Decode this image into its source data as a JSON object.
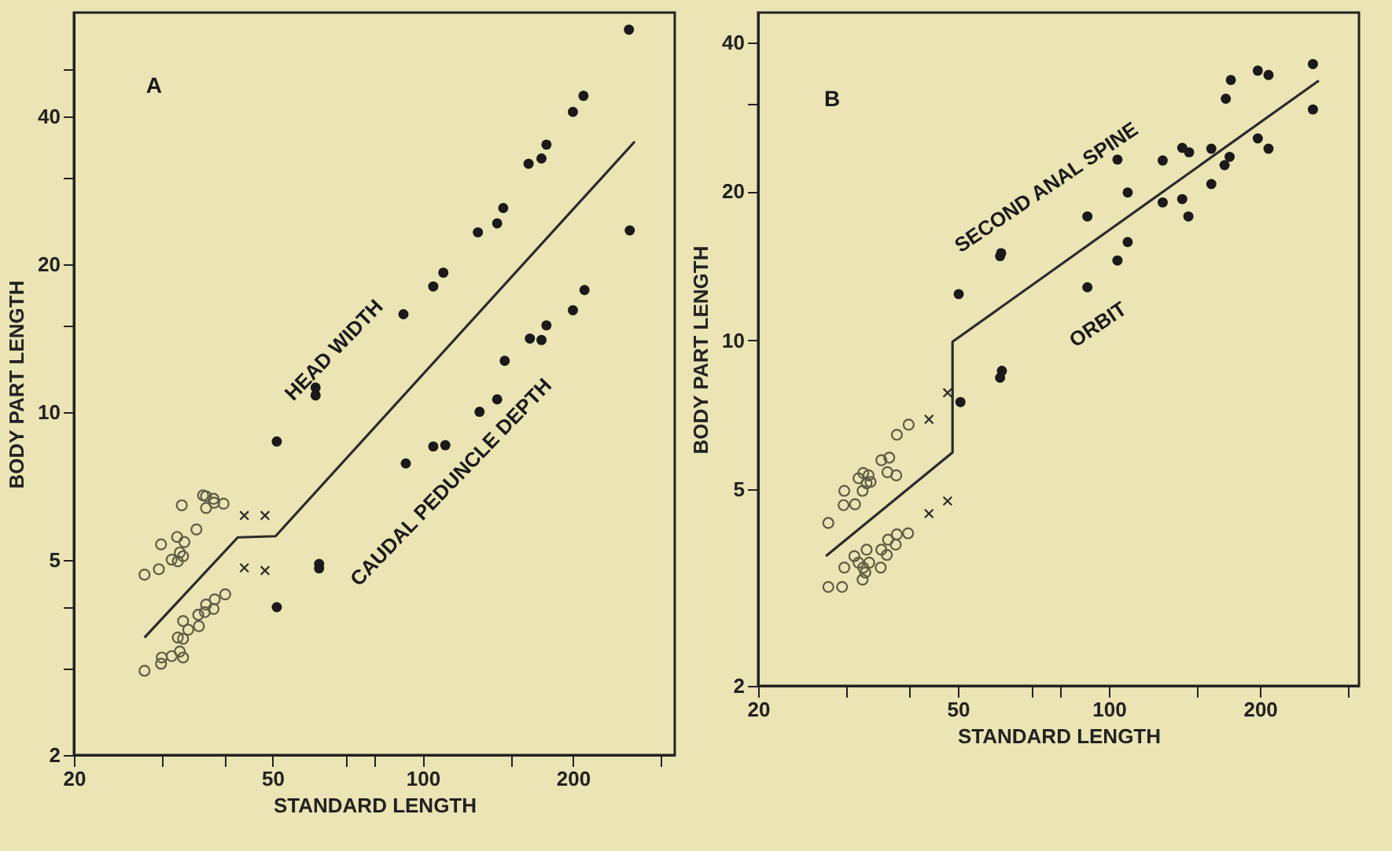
{
  "chart_data": [
    {
      "type": "scatter",
      "xlabel": "STANDARD LENGTH",
      "ylabel": "BODY PART LENGTH",
      "log": "xy",
      "xlim": [
        20,
        320
      ],
      "ylim": [
        2,
        65
      ],
      "xticks": [
        20,
        {
          "value": 30,
          "label": null
        },
        {
          "value": 40,
          "label": null
        },
        50,
        {
          "value": 70,
          "label": null
        },
        {
          "value": 80,
          "label": null
        },
        100,
        {
          "value": 150,
          "label": null
        },
        200,
        {
          "value": 300,
          "label": null
        }
      ],
      "yticks": [
        2,
        {
          "value": 3,
          "label": null
        },
        {
          "value": 4,
          "label": null
        },
        5,
        10,
        {
          "value": 15,
          "label": null
        },
        20,
        {
          "value": 30,
          "label": null
        },
        40,
        {
          "value": 50,
          "label": null
        }
      ],
      "annotations": [
        "A",
        "HEAD WIDTH",
        "CAUDAL PEDUNCLE DEPTH"
      ],
      "series": [
        {
          "type": "scatter",
          "marker": "circle",
          "color": "#5e5c45",
          "x": [
            36.3,
            36.8,
            38.1,
            36.8,
            39.9,
            38.2,
            32.9,
            35.2,
            32.2,
            33.3,
            29.9,
            32.6,
            33.1,
            31.4,
            32.3,
            29.6,
            27.7,
            40.2,
            38.3,
            36.8,
            38.1,
            36.6,
            35.5,
            35.6,
            33.1,
            33.9,
            32.3,
            33.1,
            32.6,
            31.4,
            30.0,
            33.1,
            29.9,
            27.7
          ],
          "values": [
            6.76,
            6.73,
            6.65,
            6.37,
            6.5,
            6.53,
            6.45,
            5.76,
            5.56,
            5.43,
            5.37,
            5.17,
            5.08,
            5.0,
            4.96,
            4.78,
            4.66,
            4.25,
            4.15,
            4.05,
            3.97,
            3.91,
            3.86,
            3.66,
            3.75,
            3.6,
            3.47,
            3.45,
            3.25,
            3.18,
            3.16,
            3.16,
            3.07,
            2.97
          ]
        },
        {
          "type": "scatter",
          "marker": "cross",
          "color": "#2b2b2b",
          "x": [
            43.9,
            48.3,
            43.9,
            48.3
          ],
          "values": [
            6.15,
            6.15,
            4.81,
            4.75
          ]
        },
        {
          "type": "scatter",
          "marker": "circle",
          "color": "#1a1a1a",
          "x": [
            51,
            61,
            61,
            91.5,
            105,
            110,
            129,
            141,
            145,
            163,
            173,
            177,
            200,
            210,
            259,
            51,
            62,
            62,
            92.5,
            105,
            111,
            130,
            141,
            146,
            164,
            173,
            177,
            200,
            211,
            260
          ],
          "values": [
            8.7,
            10.8,
            11.2,
            15.8,
            18,
            19.2,
            23.2,
            24.2,
            26,
            32,
            32.8,
            35,
            40.8,
            44,
            60,
            4.0,
            4.9,
            4.8,
            7.85,
            8.5,
            8.55,
            10,
            10.6,
            12.7,
            14.1,
            14,
            15,
            16.1,
            17.7,
            23.4
          ]
        },
        {
          "type": "line",
          "marker": "none",
          "line_style": "solid",
          "color": "#2b2b2b",
          "x": [
            27.7,
            42.6,
            50.7,
            266
          ],
          "values": [
            3.47,
            5.55,
            5.58,
            35.5
          ]
        }
      ]
    },
    {
      "type": "scatter",
      "xlabel": "STANDARD LENGTH",
      "ylabel": "BODY PART LENGTH",
      "log": "xy",
      "xlim": [
        20,
        315
      ],
      "ylim": [
        2,
        46
      ],
      "xticks": [
        20,
        {
          "value": 30,
          "label": null
        },
        {
          "value": 40,
          "label": null
        },
        50,
        {
          "value": 70,
          "label": null
        },
        {
          "value": 80,
          "label": null
        },
        100,
        {
          "value": 150,
          "label": null
        },
        200,
        {
          "value": 300,
          "label": null
        }
      ],
      "yticks": [
        2,
        5,
        10,
        20,
        {
          "value": 30,
          "label": null
        },
        40
      ],
      "annotations": [
        "B",
        "SECOND ANAL SPINE",
        "ORBIT"
      ],
      "series": [
        {
          "type": "scatter",
          "marker": "circle",
          "color": "#5e5c45",
          "x": [
            27.6,
            29.7,
            29.6,
            31.2,
            31.7,
            32.3,
            32.4,
            33.2,
            32.9,
            33.5,
            35.2,
            36.5,
            36.2,
            37.7,
            37.8,
            39.9,
            27.6,
            29.4,
            29.7,
            31.1,
            31.7,
            32.3,
            32.4,
            32.7,
            32.9,
            33.3,
            35.1,
            35.2,
            36.1,
            36.3,
            37.6,
            37.8,
            39.8
          ],
          "values": [
            4.27,
            4.96,
            4.64,
            4.66,
            5.26,
            4.96,
            5.39,
            5.33,
            5.14,
            5.17,
            5.72,
            5.79,
            5.41,
            5.33,
            6.44,
            6.75,
            3.17,
            3.17,
            3.47,
            3.66,
            3.55,
            3.28,
            3.47,
            3.39,
            3.77,
            3.55,
            3.47,
            3.77,
            3.68,
            3.95,
            3.86,
            4.05,
            4.07
          ]
        },
        {
          "type": "scatter",
          "marker": "cross",
          "color": "#2b2b2b",
          "x": [
            43.8,
            47.7,
            43.8,
            47.7
          ],
          "values": [
            6.92,
            7.83,
            4.46,
            4.73
          ]
        },
        {
          "type": "scatter",
          "marker": "circle",
          "color": "#1a1a1a",
          "x": [
            50.2,
            60.7,
            61.0,
            90.6,
            104,
            109,
            128,
            140,
            144.5,
            160,
            171,
            175,
            198,
            208,
            255,
            50.6,
            60.7,
            61.2,
            90.6,
            104,
            109,
            128,
            140,
            144,
            160,
            170,
            174,
            198,
            208,
            255
          ],
          "values": [
            12.4,
            14.8,
            15.0,
            17.8,
            23.2,
            19.9,
            23.1,
            24.5,
            24.0,
            24.4,
            30.8,
            33.6,
            35.1,
            34.4,
            36.2,
            7.5,
            8.4,
            8.67,
            12.8,
            14.5,
            15.8,
            19.0,
            19.3,
            17.8,
            20.7,
            22.6,
            23.5,
            25.6,
            24.4,
            29.3
          ]
        },
        {
          "type": "line",
          "marker": "none",
          "line_style": "solid",
          "color": "#2b2b2b",
          "x": [
            27.3,
            48.8,
            48.8,
            262
          ],
          "values": [
            3.66,
            5.93,
            9.93,
            33.5
          ]
        }
      ]
    }
  ]
}
